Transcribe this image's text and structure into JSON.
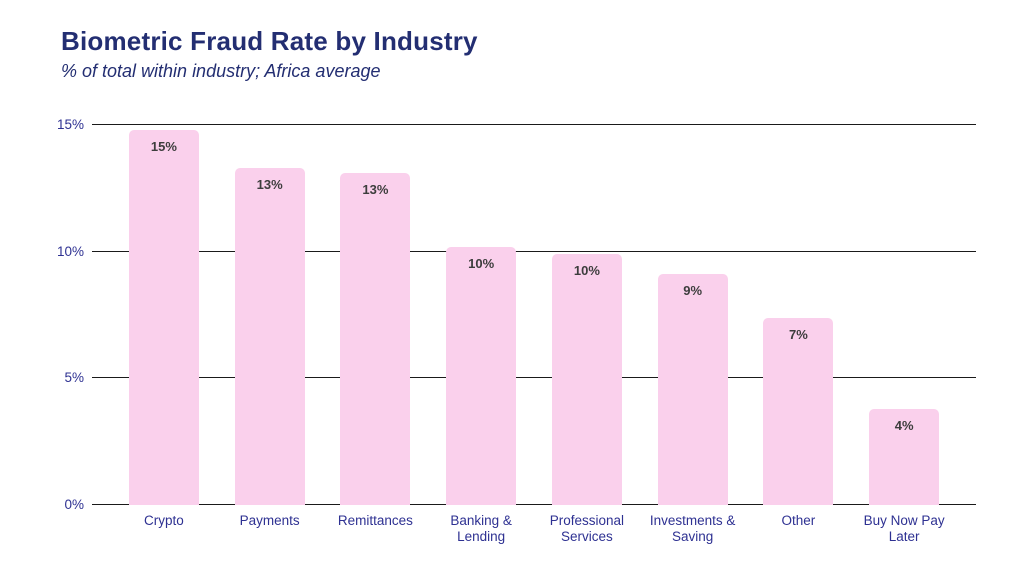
{
  "header": {
    "title": "Biometric Fraud Rate by Industry",
    "subtitle": "% of total within industry; Africa average"
  },
  "colors": {
    "title": "#232e72",
    "axis_label": "#2e3192",
    "bar_fill": "#fad0ec",
    "data_label": "#3d3d3d",
    "gridline": "#1a1a1a",
    "background": "#ffffff"
  },
  "chart_data": {
    "type": "bar",
    "title": "Biometric Fraud Rate by Industry",
    "subtitle": "% of total within industry; Africa average",
    "categories": [
      "Crypto",
      "Payments",
      "Remittances",
      "Banking &\nLending",
      "Professional\nServices",
      "Investments &\nSaving",
      "Other",
      "Buy Now Pay\nLater"
    ],
    "values": [
      14.8,
      13.3,
      13.1,
      10.2,
      9.9,
      9.1,
      7.4,
      3.8
    ],
    "bar_labels": [
      "15%",
      "13%",
      "13%",
      "10%",
      "10%",
      "9%",
      "7%",
      "4%"
    ],
    "xlabel": "",
    "ylabel": "",
    "ylim": [
      0,
      15
    ],
    "yticks": [
      0,
      5,
      10,
      15
    ],
    "ytick_labels": [
      "0%",
      "5%",
      "10%",
      "15%"
    ],
    "grid": true,
    "legend": false,
    "legend_position": "none"
  }
}
